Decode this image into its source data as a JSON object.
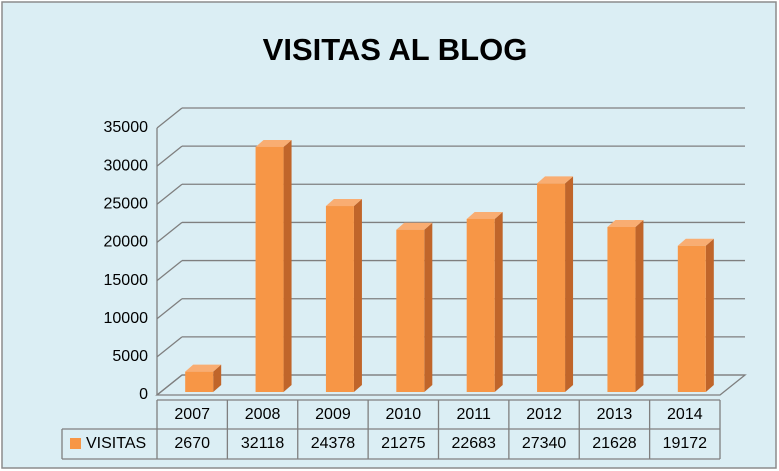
{
  "chart_data": {
    "type": "bar3d",
    "title": "VISITAS AL BLOG",
    "categories": [
      "2007",
      "2008",
      "2009",
      "2010",
      "2011",
      "2012",
      "2013",
      "2014"
    ],
    "series": [
      {
        "name": "VISITAS",
        "color": "#f79646",
        "values": [
          2670,
          32118,
          24378,
          21275,
          22683,
          27340,
          21628,
          19172
        ]
      }
    ],
    "ylim": [
      0,
      35000
    ],
    "yticks": [
      0,
      5000,
      10000,
      15000,
      20000,
      25000,
      30000,
      35000
    ],
    "grid": true,
    "data_table": true
  }
}
